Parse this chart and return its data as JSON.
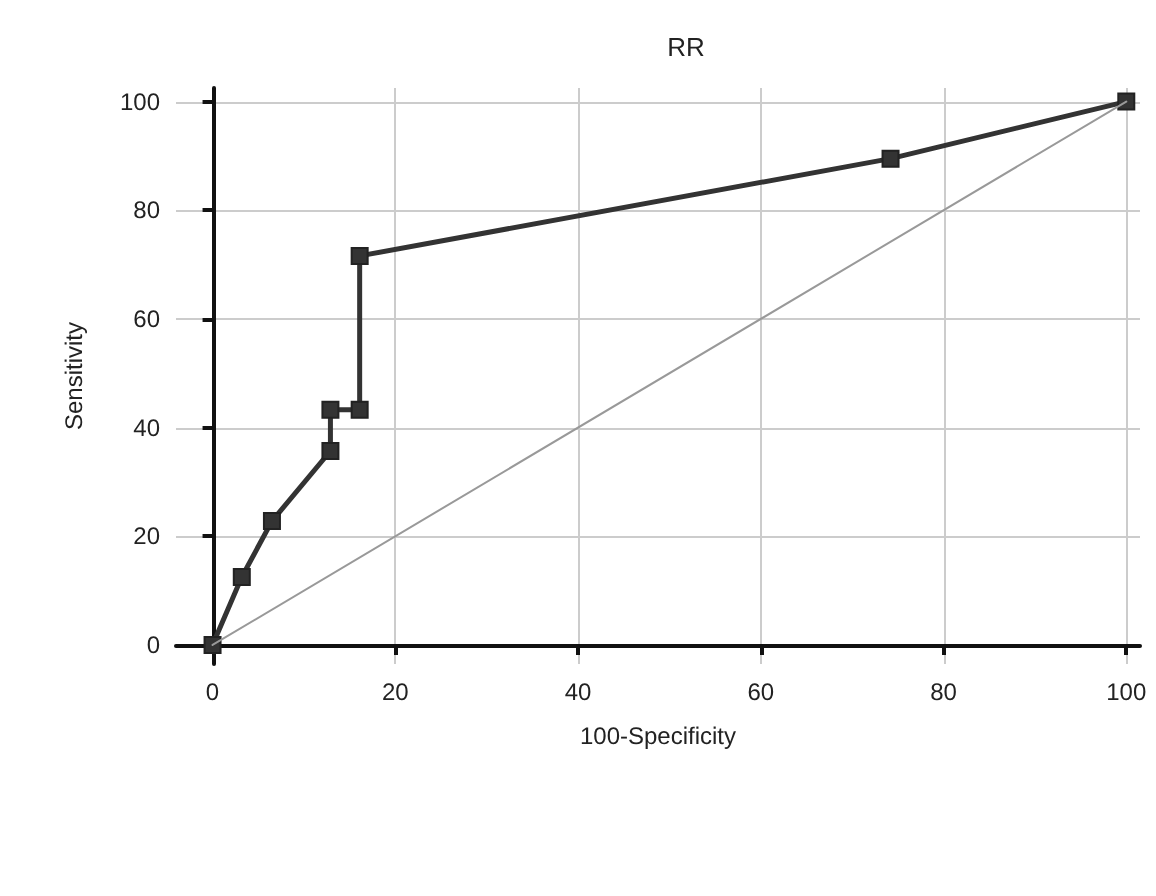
{
  "chart_data": {
    "type": "line",
    "title": "RR",
    "xlabel": "100-Specificity",
    "ylabel": "Sensitivity",
    "series": [
      {
        "color": "#333333",
        "x": [
          0,
          3.2,
          6.5,
          12.9,
          12.9,
          16.1,
          16.1,
          74.2,
          100
        ],
        "values": [
          0,
          12.5,
          22.8,
          35.7,
          43.3,
          43.3,
          71.6,
          89.5,
          100
        ]
      },
      {
        "color": "#999999",
        "marker": "none",
        "x": [
          0,
          100
        ],
        "values": [
          0,
          100
        ]
      }
    ],
    "xlim": [
      -4,
      101.5
    ],
    "xticks": [
      0,
      20,
      40,
      60,
      80,
      100
    ],
    "ylim": [
      -3.5,
      102.5
    ],
    "yticks": [
      0,
      20,
      40,
      60,
      80,
      100
    ],
    "grid": true,
    "marker": "square",
    "line_style": "solid"
  }
}
